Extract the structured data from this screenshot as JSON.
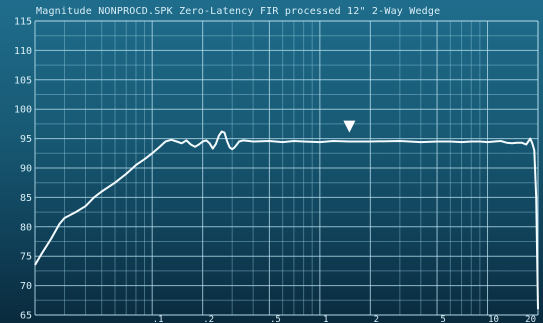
{
  "chart_data": {
    "type": "line",
    "title": "Magnitude NONPROCD.SPK Zero-Latency FIR processed 12\" 2-Way Wedge",
    "x_scale": "log",
    "xlim": [
      0.02,
      20
    ],
    "ylim": [
      65,
      115
    ],
    "y_ticks": [
      65,
      70,
      75,
      80,
      85,
      90,
      95,
      100,
      105,
      110,
      115
    ],
    "y_tick_labels": [
      "65",
      "70",
      "75",
      "80",
      "85",
      "90",
      "95",
      "100",
      "105",
      "110",
      "115"
    ],
    "x_ticks": [
      0.1,
      0.2,
      0.5,
      1,
      2,
      5,
      10,
      20
    ],
    "x_tick_labels": [
      ".1",
      ".2",
      ".5",
      "1",
      "2",
      "5",
      "10",
      "20"
    ],
    "grid": true,
    "marker": {
      "x": 1.5,
      "y": 97.2,
      "shape": "down-triangle"
    },
    "series": [
      {
        "x": [
          0.02,
          0.022,
          0.025,
          0.028,
          0.03,
          0.035,
          0.04,
          0.045,
          0.05,
          0.06,
          0.07,
          0.08,
          0.09,
          0.1,
          0.11,
          0.12,
          0.13,
          0.14,
          0.15,
          0.16,
          0.17,
          0.18,
          0.19,
          0.2,
          0.21,
          0.22,
          0.23,
          0.24,
          0.25,
          0.26,
          0.27,
          0.28,
          0.29,
          0.3,
          0.31,
          0.32,
          0.33,
          0.35,
          0.4,
          0.5,
          0.6,
          0.7,
          0.8,
          1,
          1.2,
          1.5,
          2,
          3,
          4,
          5,
          6,
          7,
          8,
          9,
          10,
          11,
          12,
          13,
          14,
          15,
          16,
          17,
          17.5,
          18,
          18.5,
          19,
          19.5,
          20
        ],
        "y": [
          73.5,
          75.5,
          78,
          80.5,
          81.5,
          82.5,
          83.5,
          85,
          86,
          87.5,
          89,
          90.5,
          91.5,
          92.5,
          93.5,
          94.5,
          94.8,
          94.5,
          94.2,
          94.7,
          94,
          93.6,
          94,
          94.5,
          94.7,
          94.2,
          93.3,
          94.1,
          95.5,
          96.2,
          96,
          94.5,
          93.5,
          93.2,
          93.5,
          94,
          94.5,
          94.7,
          94.5,
          94.6,
          94.4,
          94.6,
          94.5,
          94.4,
          94.6,
          94.5,
          94.5,
          94.6,
          94.4,
          94.5,
          94.5,
          94.4,
          94.5,
          94.5,
          94.4,
          94.5,
          94.6,
          94.3,
          94.2,
          94.3,
          94.3,
          94,
          94.5,
          95,
          94.2,
          93,
          85,
          66
        ]
      }
    ]
  }
}
